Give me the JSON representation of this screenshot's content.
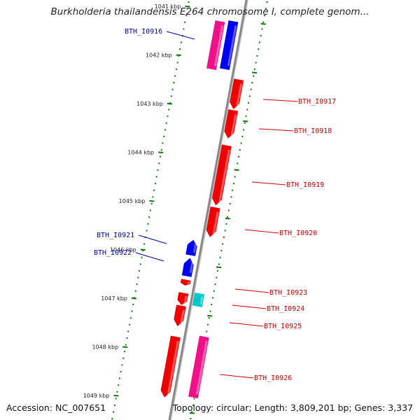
{
  "title": "Burkholderia thailandensis E264 chromosome I, complete genom...",
  "footer": {
    "accession": "Accession: NC_007651",
    "summary": "Topology: circular; Length: 3,809,201 bp; Genes: 3,337"
  },
  "colors": {
    "forward_gene": "#ee0000",
    "reverse_gene": "#0000ee",
    "pink_gene": "#ee1188",
    "cyan_gene": "#00c8c8",
    "forward_label": "#cc0000",
    "reverse_label": "#0000aa",
    "tick": "#117711",
    "backbone": "#888888"
  },
  "scale_ticks": [
    {
      "kbp": 1041,
      "label": "1041 kbp"
    },
    {
      "kbp": 1042,
      "label": "1042 kbp"
    },
    {
      "kbp": 1043,
      "label": "1043 kbp"
    },
    {
      "kbp": 1044,
      "label": "1044 kbp"
    },
    {
      "kbp": 1045,
      "label": "1045 kbp"
    },
    {
      "kbp": 1046,
      "label": "1046 kbp"
    },
    {
      "kbp": 1047,
      "label": "1047 kbp"
    },
    {
      "kbp": 1048,
      "label": "1048 kbp"
    },
    {
      "kbp": 1049,
      "label": "1049 kbp"
    }
  ],
  "genes": [
    {
      "name": "BTH_I0916",
      "strand": "reverse",
      "side": "left",
      "start_kbp": 1041.3,
      "end_kbp": 1042.3,
      "color": "blue"
    },
    {
      "name": "",
      "strand": "reverse",
      "side": "left-outer",
      "start_kbp": 1041.3,
      "end_kbp": 1042.3,
      "color": "pink"
    },
    {
      "name": "BTH_I0917",
      "strand": "forward",
      "side": "right",
      "start_kbp": 1042.5,
      "end_kbp": 1043.12,
      "color": "red"
    },
    {
      "name": "BTH_I0918",
      "strand": "forward",
      "side": "right",
      "start_kbp": 1043.13,
      "end_kbp": 1043.72,
      "color": "red"
    },
    {
      "name": "BTH_I0919",
      "strand": "forward",
      "side": "right",
      "start_kbp": 1043.85,
      "end_kbp": 1045.1,
      "color": "red"
    },
    {
      "name": "BTH_I0920",
      "strand": "forward",
      "side": "right",
      "start_kbp": 1045.13,
      "end_kbp": 1045.75,
      "color": "red"
    },
    {
      "name": "BTH_I0921",
      "strand": "reverse",
      "side": "left",
      "start_kbp": 1045.8,
      "end_kbp": 1046.12,
      "color": "blue"
    },
    {
      "name": "BTH_I0922",
      "strand": "reverse",
      "side": "left",
      "start_kbp": 1046.17,
      "end_kbp": 1046.55,
      "color": "blue"
    },
    {
      "name": "BTH_I0923",
      "strand": "forward",
      "side": "left",
      "start_kbp": 1046.62,
      "end_kbp": 1046.74,
      "color": "red"
    },
    {
      "name": "BTH_I0924",
      "strand": "other",
      "side": "right",
      "start_kbp": 1046.9,
      "end_kbp": 1047.17,
      "color": "cyan"
    },
    {
      "name": "",
      "strand": "forward",
      "side": "left",
      "start_kbp": 1046.89,
      "end_kbp": 1047.14,
      "color": "red"
    },
    {
      "name": "BTH_I0925",
      "strand": "forward",
      "side": "left",
      "start_kbp": 1047.15,
      "end_kbp": 1047.58,
      "color": "red"
    },
    {
      "name": "BTH_I0926",
      "strand": "forward",
      "side": "left",
      "start_kbp": 1047.78,
      "end_kbp": 1049.05,
      "color": "red"
    },
    {
      "name": "",
      "strand": "forward",
      "side": "right-outer",
      "start_kbp": 1047.78,
      "end_kbp": 1049.05,
      "color": "pink"
    }
  ]
}
